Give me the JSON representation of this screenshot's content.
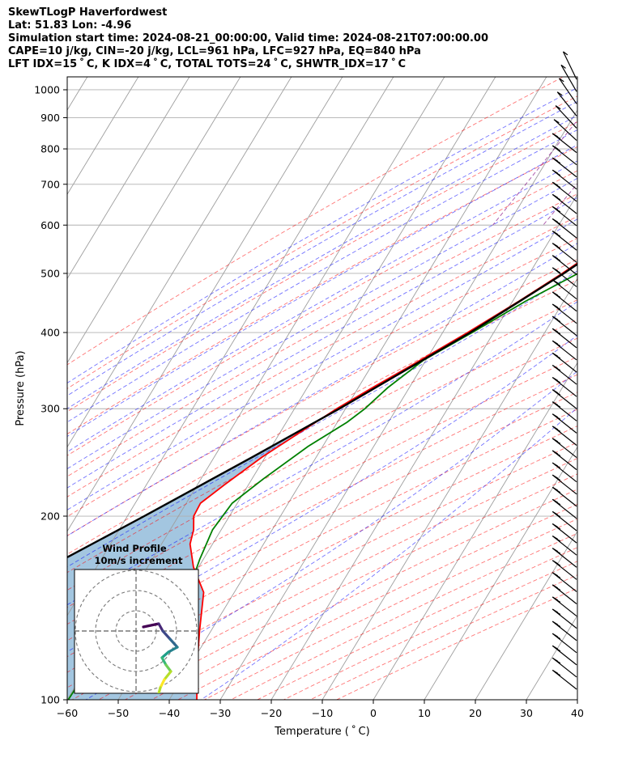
{
  "header": {
    "line1": "SkewTLogP Haverfordwest",
    "line2": "Lat: 51.83   Lon: -4.96",
    "line3": "Simulation start time: 2024-08-21_00:00:00, Valid time: 2024-08-21T07:00:00.00",
    "line4": "CAPE=10 j/kg, CIN=-20 j/kg, LCL=961 hPa, LFC=927 hPa, EQ=840 hPa",
    "line5": "LFT IDX=15 ˚ C, K IDX=4 ˚ C, TOTAL TOTS=24 ˚ C, SHWTR_IDX=17 ˚ C"
  },
  "colors": {
    "temperature": "#ff0000",
    "dewpoint": "#008000",
    "parcel": "#000000",
    "cape_fill": "#a3c6e0",
    "dry_adiabat": "#ff0000",
    "moist_adiabat": "#0000ff",
    "mixing_ratio": "#800080",
    "isotherm": "#999999"
  },
  "chart_data": [
    {
      "type": "line",
      "subtype": "skew-t log-p",
      "xlabel": "Temperature ( ˚ C)",
      "ylabel": "Pressure (hPa)",
      "xlim": [
        -60,
        40
      ],
      "ylim": [
        1050,
        100
      ],
      "x_ticks": [
        "−60",
        "−50",
        "−40",
        "−30",
        "−20",
        "−10",
        "0",
        "10",
        "20",
        "30",
        "40"
      ],
      "y_ticks": [
        {
          "p": 100,
          "label": "100"
        },
        {
          "p": 200,
          "label": "200"
        },
        {
          "p": 300,
          "label": "300"
        },
        {
          "p": 400,
          "label": "400"
        },
        {
          "p": 500,
          "label": "500"
        },
        {
          "p": 600,
          "label": "600"
        },
        {
          "p": 700,
          "label": "700"
        },
        {
          "p": 800,
          "label": "800"
        },
        {
          "p": 900,
          "label": "900"
        },
        {
          "p": 1000,
          "label": "1000"
        }
      ],
      "grid": true,
      "y_scale": "log",
      "temperature": {
        "p": [
          1000,
          985,
          975,
          950,
          925,
          900,
          850,
          800,
          750,
          700,
          650,
          600,
          550,
          500,
          450,
          400,
          375,
          350,
          325,
          300,
          275,
          250,
          225,
          210,
          200,
          190,
          180,
          165,
          150,
          130,
          115,
          100
        ],
        "t": [
          14.2,
          13.3,
          12.4,
          11.0,
          10.0,
          9.2,
          7.2,
          5.3,
          3.2,
          0.9,
          -2.2,
          -5.6,
          -9.3,
          -13.6,
          -18.8,
          -25.1,
          -28.8,
          -32.8,
          -37.2,
          -41.7,
          -46.0,
          -50.6,
          -54.7,
          -57.2,
          -57.0,
          -55.4,
          -54.4,
          -51.0,
          -46.0,
          -42.3,
          -38.9,
          -34.6
        ]
      },
      "dewpoint": {
        "p": [
          1000,
          985,
          950,
          925,
          900,
          850,
          800,
          750,
          700,
          680,
          650,
          600,
          575,
          550,
          500,
          450,
          400,
          360,
          325,
          300,
          285,
          260,
          230,
          210,
          190,
          170,
          155,
          140,
          130,
          115,
          100
        ],
        "td": [
          10.0,
          10.1,
          9.4,
          7.2,
          6.1,
          5.3,
          4.3,
          1.0,
          -5.1,
          -9.9,
          -9.1,
          -3.2,
          -2.6,
          -4.3,
          -10.5,
          -17.5,
          -24.2,
          -30.5,
          -34.2,
          -36.2,
          -38.1,
          -42.9,
          -47.8,
          -51.0,
          -51.7,
          -50.7,
          -49.5,
          -53.1,
          -57.2,
          -59.5,
          -59.8
        ]
      },
      "parcel": {
        "p": [
          1000,
          985,
          961,
          927,
          900,
          850,
          800,
          700,
          600,
          500,
          400,
          300,
          250,
          200,
          150,
          100
        ],
        "t": [
          14.2,
          12.8,
          11.6,
          10.7,
          9.9,
          8.3,
          6.4,
          1.5,
          -5.0,
          -13.3,
          -24.6,
          -41.2,
          -52.5,
          -66.7,
          -85.6,
          -109.8
        ]
      },
      "wind_profile": {
        "title": "Wind Profile",
        "subtitle": "10m/s increment"
      }
    }
  ]
}
